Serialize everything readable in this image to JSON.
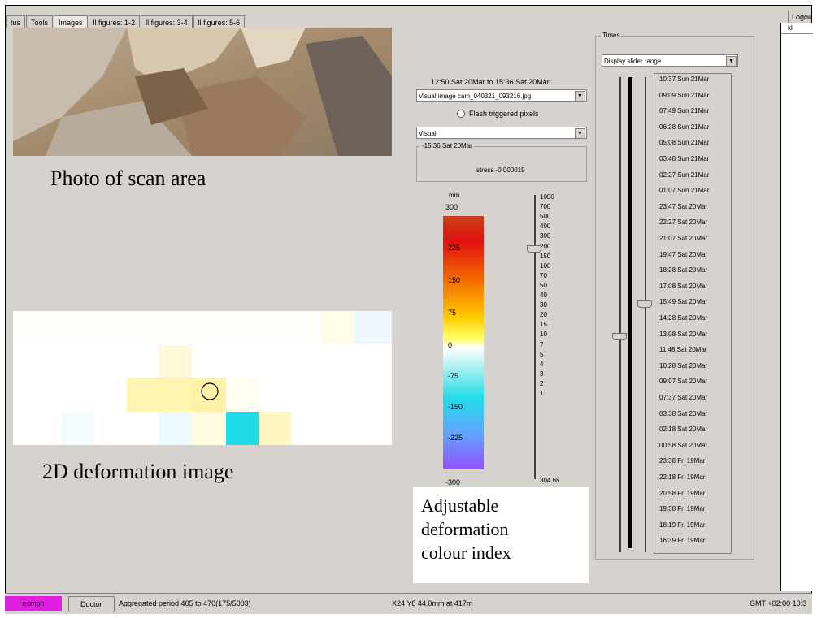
{
  "tabs": [
    "tus",
    "Tools",
    "Images",
    "ll figures: 1-2",
    "ll figures: 3-4",
    "ll figures: 5-6"
  ],
  "active_tab": 2,
  "logout": "Logout",
  "right_panel": {
    "header": "kl"
  },
  "captions": {
    "photo": "Photo of scan area",
    "deformation": "2D deformation image",
    "callout": [
      "Adjustable",
      "deformation",
      "colour index"
    ]
  },
  "image_panel": {
    "date_range": "12:50 Sat 20Mar to 15:36 Sat 20Mar",
    "image_file": "Visual image cam_040321_093216.jpg",
    "flash_label": "Flash triggered pixels",
    "mode": "Visual",
    "group_label": "-15:36 Sat 20Mar",
    "stress_readout": "stress -0.000019"
  },
  "colorbar": {
    "unit": "mm",
    "max": "300",
    "min": "-300",
    "ticks": [
      "225",
      "150",
      "75",
      "0",
      "-75",
      "-150",
      "-225"
    ]
  },
  "range_scale": {
    "labels": [
      "1000",
      "700",
      "500",
      "400",
      "300",
      "200",
      "150",
      "100",
      "70",
      "50",
      "40",
      "30",
      "20",
      "15",
      "10",
      "7",
      "5",
      "4",
      "3",
      "2",
      "1"
    ],
    "bottom": "304.65"
  },
  "times_panel": {
    "title": "Times",
    "dropdown": "Display slider range",
    "items": [
      "10:37 Sun 21Mar",
      "09:09 Sun 21Mar",
      "07:49 Sun 21Mar",
      "06:28 Sun 21Mar",
      "05:08 Sun 21Mar",
      "03:48 Sun 21Mar",
      "02:27 Sun 21Mar",
      "01:07 Sun 21Mar",
      "23:47 Sat 20Mar",
      "22:27 Sat 20Mar",
      "21:07 Sat 20Mar",
      "19:47 Sat 20Mar",
      "18:28 Sat 20Mar",
      "17:08 Sat 20Mar",
      "15:49 Sat 20Mar",
      "14:28 Sat 20Mar",
      "13:08 Sat 20Mar",
      "11:48 Sat 20Mar",
      "10:28 Sat 20Mar",
      "09:07 Sat 20Mar",
      "07:37 Sat 20Mar",
      "03:38 Sat 20Mar",
      "02:18 Sat 20Mar",
      "00:58 Sat 20Mar",
      "23:38 Fri 19Mar",
      "22:18 Fri 19Mar",
      "20:58 Fri 19Mar",
      "19:38 Fri 19Mar",
      "18:19 Fri 19Mar",
      "16:39 Fri 19Mar"
    ]
  },
  "status_bar": {
    "user": "ecmon",
    "doctor": "Doctor",
    "period": "Aggregated period 405 to 470(175/5003)",
    "coords": "X24 Y8 44.0mm at 417m",
    "time": "GMT +02:00 10:3"
  },
  "colors": {
    "panel_bg": "#d6d3ce",
    "user_badge": "#e020e0",
    "pale_yellow": "#fff4b0",
    "cyan": "#20dce8"
  }
}
